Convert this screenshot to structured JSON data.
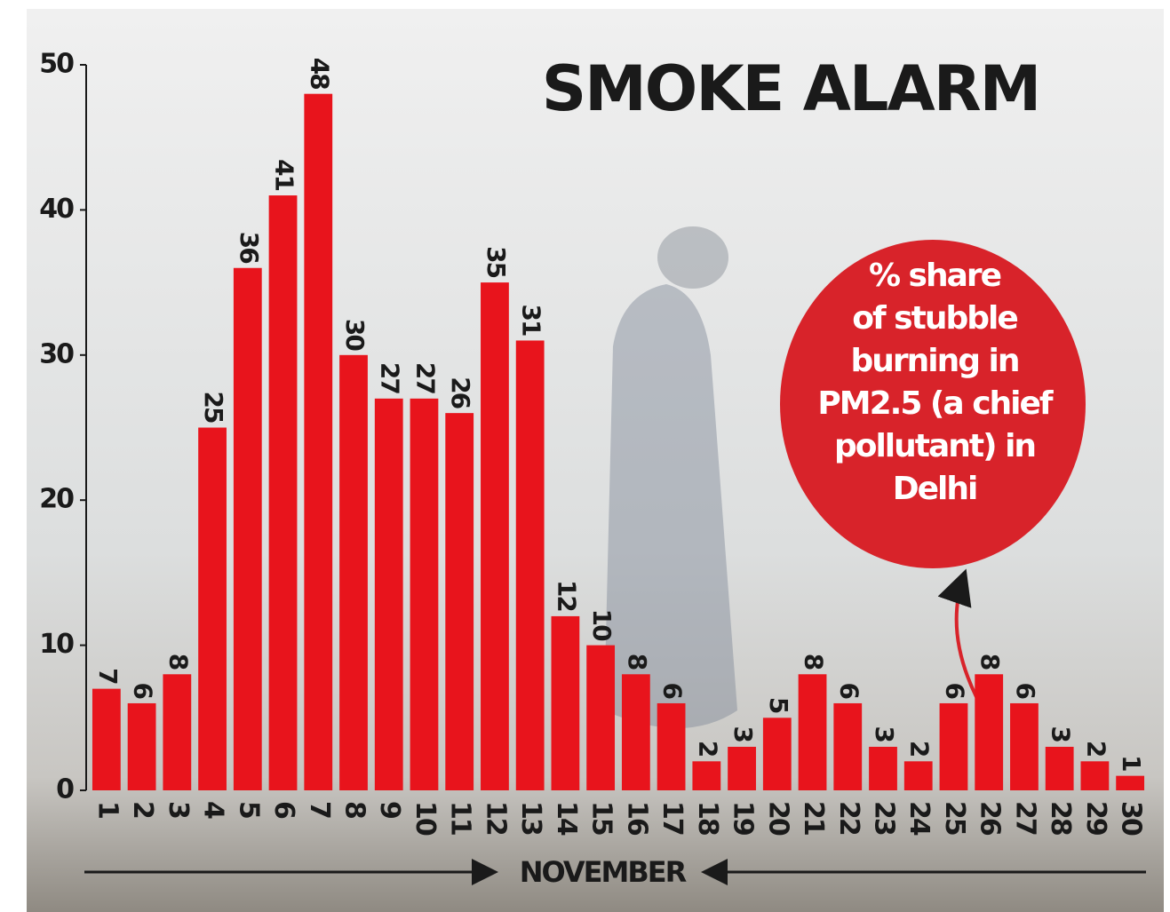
{
  "chart_data": {
    "type": "bar",
    "title": "SMOKE ALARM",
    "annotation": [
      "% share",
      "of stubble",
      "burning in",
      "PM2.5 (a chief",
      "pollutant) in",
      "Delhi"
    ],
    "xlabel": "NOVEMBER",
    "categories": [
      "1",
      "2",
      "3",
      "4",
      "5",
      "6",
      "7",
      "8",
      "9",
      "10",
      "11",
      "12",
      "13",
      "14",
      "15",
      "16",
      "17",
      "18",
      "19",
      "20",
      "21",
      "22",
      "23",
      "24",
      "25",
      "26",
      "27",
      "28",
      "29",
      "30"
    ],
    "values": [
      7,
      6,
      8,
      25,
      36,
      41,
      48,
      30,
      27,
      27,
      26,
      35,
      31,
      12,
      10,
      8,
      6,
      2,
      3,
      5,
      8,
      6,
      3,
      2,
      6,
      8,
      6,
      3,
      2,
      1
    ],
    "color": "#e8141c",
    "ylim": [
      0,
      50
    ],
    "yticks": [
      0,
      10,
      20,
      30,
      40,
      50
    ],
    "grid": false
  }
}
